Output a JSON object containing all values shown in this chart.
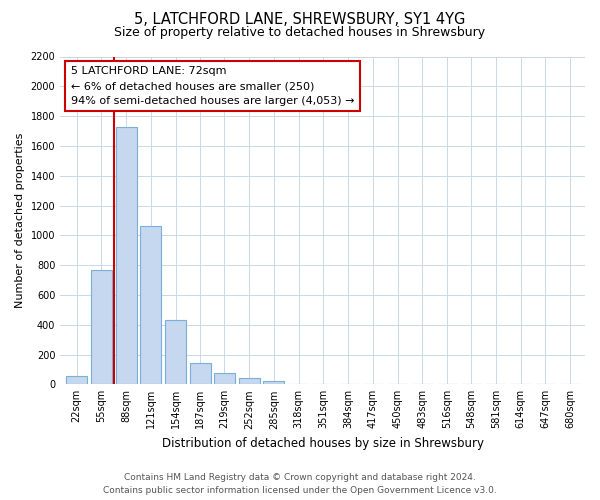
{
  "title": "5, LATCHFORD LANE, SHREWSBURY, SY1 4YG",
  "subtitle": "Size of property relative to detached houses in Shrewsbury",
  "xlabel": "Distribution of detached houses by size in Shrewsbury",
  "ylabel": "Number of detached properties",
  "bar_labels": [
    "22sqm",
    "55sqm",
    "88sqm",
    "121sqm",
    "154sqm",
    "187sqm",
    "219sqm",
    "252sqm",
    "285sqm",
    "318sqm",
    "351sqm",
    "384sqm",
    "417sqm",
    "450sqm",
    "483sqm",
    "516sqm",
    "548sqm",
    "581sqm",
    "614sqm",
    "647sqm",
    "680sqm"
  ],
  "bar_values": [
    55,
    770,
    1730,
    1060,
    430,
    145,
    78,
    40,
    25,
    0,
    0,
    0,
    0,
    0,
    0,
    0,
    0,
    0,
    0,
    0,
    0
  ],
  "bar_color": "#c5d8ef",
  "bar_edge_color": "#7bafd4",
  "ylim": [
    0,
    2200
  ],
  "yticks": [
    0,
    200,
    400,
    600,
    800,
    1000,
    1200,
    1400,
    1600,
    1800,
    2000,
    2200
  ],
  "property_line_color": "#cc0000",
  "annotation_title": "5 LATCHFORD LANE: 72sqm",
  "annotation_line1": "← 6% of detached houses are smaller (250)",
  "annotation_line2": "94% of semi-detached houses are larger (4,053) →",
  "annotation_box_color": "#ffffff",
  "annotation_box_edge": "#cc0000",
  "footnote1": "Contains HM Land Registry data © Crown copyright and database right 2024.",
  "footnote2": "Contains public sector information licensed under the Open Government Licence v3.0.",
  "background_color": "#ffffff",
  "grid_color": "#c8d8e8",
  "title_fontsize": 10.5,
  "subtitle_fontsize": 9,
  "xlabel_fontsize": 8.5,
  "ylabel_fontsize": 8,
  "tick_fontsize": 7,
  "annotation_fontsize": 8,
  "footnote_fontsize": 6.5
}
